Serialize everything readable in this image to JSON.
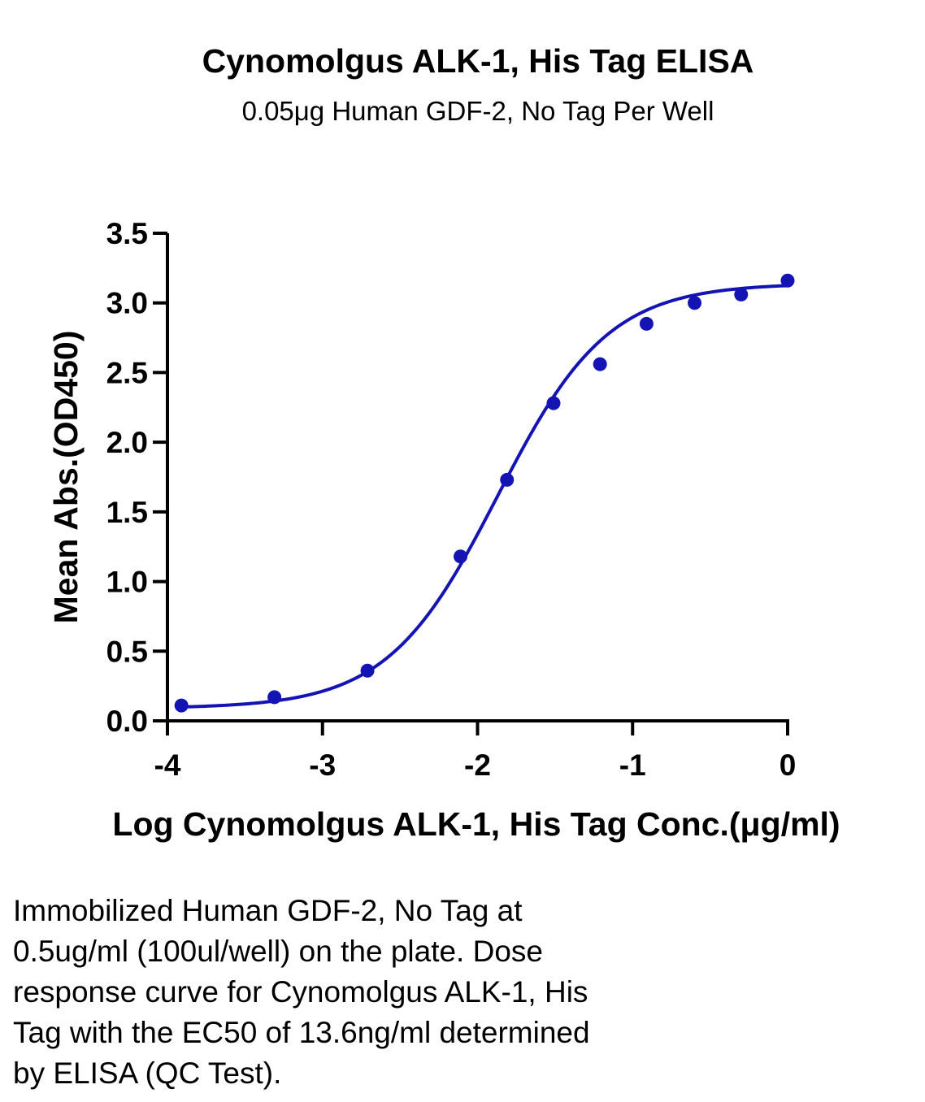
{
  "chart_data": {
    "type": "scatter",
    "title": "Cynomolgus ALK-1, His Tag ELISA",
    "subtitle": "0.05μg Human GDF-2, No Tag Per Well",
    "xlabel": "Log Cynomolgus ALK-1, His Tag Conc.(μg/ml)",
    "ylabel": "Mean Abs.(OD450)",
    "xlim": [
      -4,
      0
    ],
    "ylim": [
      0,
      3.5
    ],
    "x_ticks": [
      "-4",
      "-3",
      "-2",
      "-1",
      "0"
    ],
    "x_tick_values": [
      -4,
      -3,
      -2,
      -1,
      0
    ],
    "y_ticks": [
      "0.0",
      "0.5",
      "1.0",
      "1.5",
      "2.0",
      "2.5",
      "3.0",
      "3.5"
    ],
    "y_tick_values": [
      0,
      0.5,
      1.0,
      1.5,
      2.0,
      2.5,
      3.0,
      3.5
    ],
    "grid": false,
    "color": "#1414b4",
    "points": {
      "x": [
        -3.91,
        -3.31,
        -2.71,
        -2.11,
        -1.81,
        -1.51,
        -1.21,
        -0.91,
        -0.6,
        -0.3,
        0.0
      ],
      "y": [
        0.11,
        0.17,
        0.36,
        1.18,
        1.73,
        2.28,
        2.56,
        2.85,
        3.0,
        3.06,
        3.16
      ]
    },
    "fit": {
      "type": "4PL",
      "bottom": 0.09,
      "top": 3.14,
      "log_ec50": -1.87,
      "hill_slope": 1.22,
      "x_start": -3.91,
      "x_end": 0.0
    }
  },
  "caption": {
    "lines": [
      "Immobilized Human GDF-2, No Tag at",
      "0.5ug/ml (100ul/well) on the plate. Dose",
      "response curve for Cynomolgus ALK-1, His",
      "Tag with the EC50 of 13.6ng/ml determined",
      "by ELISA (QC Test)."
    ]
  }
}
